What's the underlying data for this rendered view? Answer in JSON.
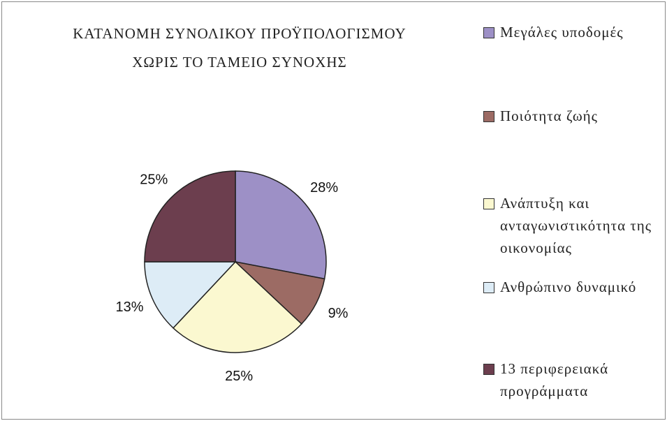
{
  "chart_data": {
    "type": "pie",
    "title": [
      "ΚΑΤΑΝΟΜΗ ΣΥΝΟΛΙΚΟΥ ΠΡΟΫΠΟΛΟΓΙΣΜΟΥ",
      "ΧΩΡΙΣ ΤΟ ΤΑΜΕΙΟ ΣΥΝΟΧΗΣ"
    ],
    "categories": [
      "Μεγάλες υποδομές",
      "Ποιότητα ζωής",
      "Ανάπτυξη και ανταγωνιστικότητα της οικονομίας",
      "Ανθρώπινο δυναμικό",
      "13 περιφερειακά προγράμματα"
    ],
    "values": [
      28,
      9,
      25,
      13,
      25
    ],
    "value_labels": [
      "28%",
      "9%",
      "25%",
      "13%",
      "25%"
    ],
    "colors": [
      "#9d90c6",
      "#9c6b64",
      "#fbf8d0",
      "#ddecf6",
      "#6c3e4e"
    ],
    "legend": "right"
  }
}
